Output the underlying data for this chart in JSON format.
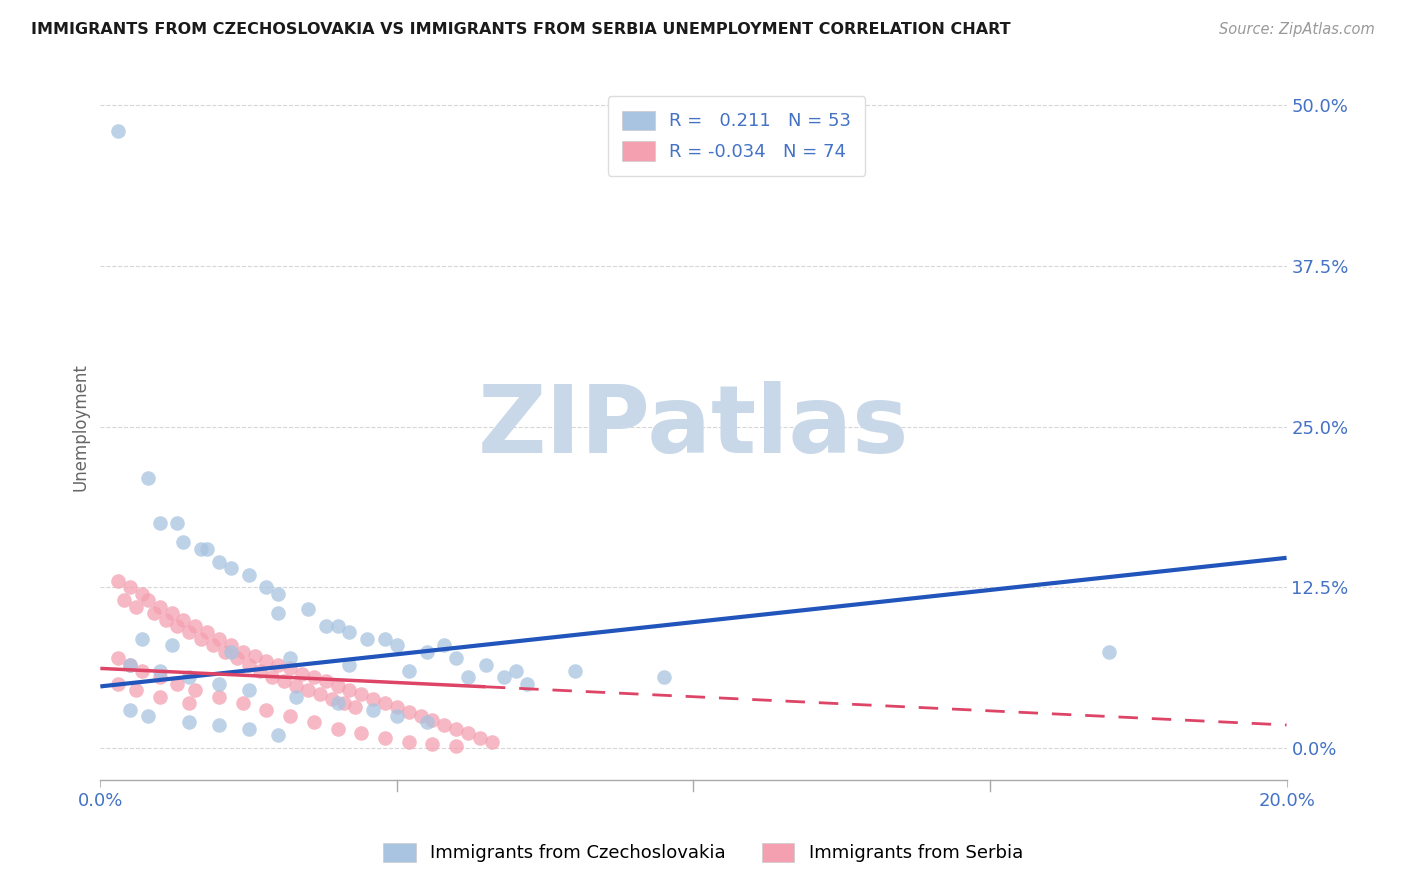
{
  "title": "IMMIGRANTS FROM CZECHOSLOVAKIA VS IMMIGRANTS FROM SERBIA UNEMPLOYMENT CORRELATION CHART",
  "source": "Source: ZipAtlas.com",
  "ylabel_label": "Unemployment",
  "ytick_labels": [
    "0.0%",
    "12.5%",
    "25.0%",
    "37.5%",
    "50.0%"
  ],
  "ytick_values": [
    0.0,
    0.125,
    0.25,
    0.375,
    0.5
  ],
  "xlim": [
    0.0,
    0.2
  ],
  "ylim": [
    -0.025,
    0.525
  ],
  "legend_label1": "Immigrants from Czechoslovakia",
  "legend_label2": "Immigrants from Serbia",
  "r1": 0.211,
  "n1": 53,
  "r2": -0.034,
  "n2": 74,
  "color1": "#a8c4e0",
  "color2": "#f4a0b0",
  "line1_color": "#2255bb",
  "line2_color": "#dd4466",
  "watermark_zip": "ZIP",
  "watermark_atlas": "atlas",
  "watermark_color_zip": "#c8d8e8",
  "watermark_color_atlas": "#c8d8e8",
  "background_color": "#ffffff",
  "grid_color": "#cccccc",
  "title_color": "#1a1a1a",
  "axis_label_color": "#4472c4",
  "tick_color": "#4472c4",
  "line1_y_at_0": 0.048,
  "line1_y_at_020": 0.148,
  "line2_y_at_0": 0.062,
  "line2_y_at_020": 0.018,
  "line2_solid_end": 0.065,
  "scatter1_x": [
    0.003,
    0.008,
    0.013,
    0.018,
    0.01,
    0.014,
    0.017,
    0.02,
    0.022,
    0.025,
    0.028,
    0.03,
    0.035,
    0.04,
    0.042,
    0.045,
    0.05,
    0.055,
    0.06,
    0.065,
    0.07,
    0.08,
    0.095,
    0.03,
    0.038,
    0.048,
    0.058,
    0.068,
    0.007,
    0.012,
    0.022,
    0.032,
    0.042,
    0.052,
    0.062,
    0.072,
    0.005,
    0.01,
    0.015,
    0.02,
    0.025,
    0.033,
    0.04,
    0.046,
    0.05,
    0.055,
    0.17,
    0.005,
    0.008,
    0.015,
    0.02,
    0.025,
    0.03
  ],
  "scatter1_y": [
    0.48,
    0.21,
    0.175,
    0.155,
    0.175,
    0.16,
    0.155,
    0.145,
    0.14,
    0.135,
    0.125,
    0.12,
    0.108,
    0.095,
    0.09,
    0.085,
    0.08,
    0.075,
    0.07,
    0.065,
    0.06,
    0.06,
    0.055,
    0.105,
    0.095,
    0.085,
    0.08,
    0.055,
    0.085,
    0.08,
    0.075,
    0.07,
    0.065,
    0.06,
    0.055,
    0.05,
    0.065,
    0.06,
    0.055,
    0.05,
    0.045,
    0.04,
    0.035,
    0.03,
    0.025,
    0.02,
    0.075,
    0.03,
    0.025,
    0.02,
    0.018,
    0.015,
    0.01
  ],
  "scatter2_x": [
    0.003,
    0.005,
    0.007,
    0.008,
    0.01,
    0.012,
    0.014,
    0.016,
    0.018,
    0.02,
    0.022,
    0.024,
    0.026,
    0.028,
    0.03,
    0.032,
    0.034,
    0.036,
    0.038,
    0.04,
    0.042,
    0.044,
    0.046,
    0.048,
    0.05,
    0.052,
    0.054,
    0.056,
    0.058,
    0.06,
    0.062,
    0.064,
    0.066,
    0.004,
    0.006,
    0.009,
    0.011,
    0.013,
    0.015,
    0.017,
    0.019,
    0.021,
    0.023,
    0.025,
    0.027,
    0.029,
    0.031,
    0.033,
    0.035,
    0.037,
    0.039,
    0.041,
    0.043,
    0.003,
    0.005,
    0.007,
    0.01,
    0.013,
    0.016,
    0.02,
    0.024,
    0.028,
    0.032,
    0.036,
    0.04,
    0.044,
    0.048,
    0.052,
    0.056,
    0.06,
    0.003,
    0.006,
    0.01,
    0.015
  ],
  "scatter2_y": [
    0.13,
    0.125,
    0.12,
    0.115,
    0.11,
    0.105,
    0.1,
    0.095,
    0.09,
    0.085,
    0.08,
    0.075,
    0.072,
    0.068,
    0.065,
    0.062,
    0.058,
    0.055,
    0.052,
    0.048,
    0.045,
    0.042,
    0.038,
    0.035,
    0.032,
    0.028,
    0.025,
    0.022,
    0.018,
    0.015,
    0.012,
    0.008,
    0.005,
    0.115,
    0.11,
    0.105,
    0.1,
    0.095,
    0.09,
    0.085,
    0.08,
    0.075,
    0.07,
    0.065,
    0.06,
    0.055,
    0.052,
    0.048,
    0.045,
    0.042,
    0.038,
    0.035,
    0.032,
    0.07,
    0.065,
    0.06,
    0.055,
    0.05,
    0.045,
    0.04,
    0.035,
    0.03,
    0.025,
    0.02,
    0.015,
    0.012,
    0.008,
    0.005,
    0.003,
    0.002,
    0.05,
    0.045,
    0.04,
    0.035
  ]
}
